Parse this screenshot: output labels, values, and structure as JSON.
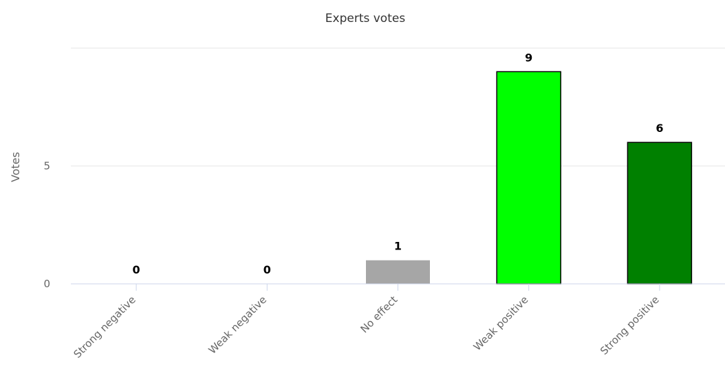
{
  "chart_data": {
    "type": "bar",
    "title": "Experts votes",
    "xlabel": "",
    "ylabel": "Votes",
    "categories": [
      "Strong negative",
      "Weak negative",
      "No effect",
      "Weak positive",
      "Strong positive"
    ],
    "values": [
      0,
      0,
      1,
      9,
      6
    ],
    "colors": [
      "#ff0000",
      "#ff9999",
      "#a6a6a6",
      "#00ff00",
      "#008000"
    ],
    "ylim": [
      0,
      10
    ],
    "yticks": [
      0,
      5
    ],
    "grid": true,
    "legend": "none",
    "data_labels": true
  }
}
